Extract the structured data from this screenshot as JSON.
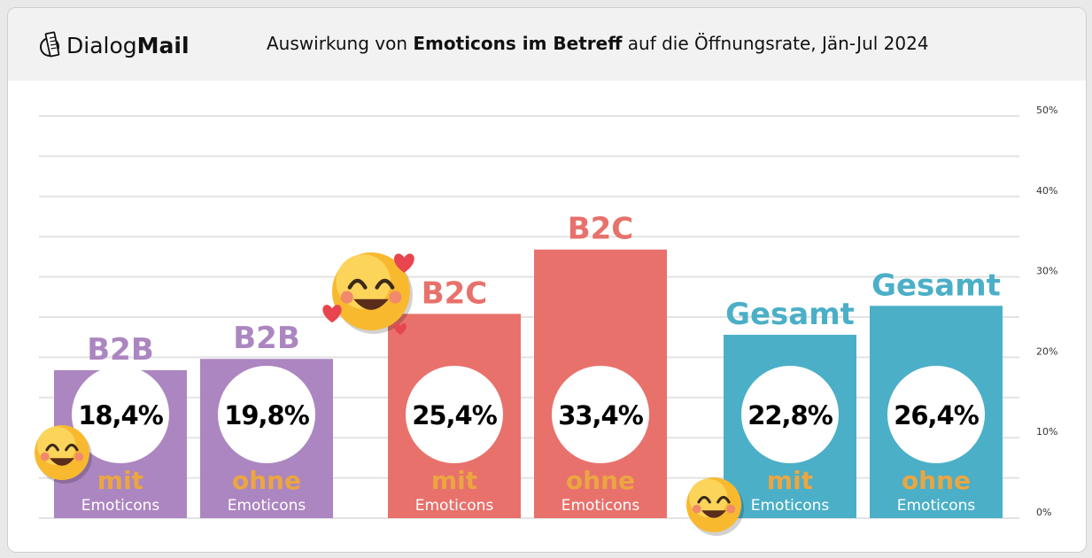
{
  "header": {
    "logo_regular": "Dialog",
    "logo_bold": "Mail",
    "title_pre": "Auswirkung von ",
    "title_bold": "Emoticons im Betreff",
    "title_post": " auf die Öffnungsrate, Jän-Jul 2024"
  },
  "chart_data": {
    "type": "bar",
    "title": "Auswirkung von Emoticons im Betreff auf die Öffnungsrate, Jän-Jul 2024",
    "ylim": [
      0,
      50
    ],
    "yticks": [
      "0%",
      "10%",
      "20%",
      "30%",
      "40%",
      "50%"
    ],
    "ytick_values": [
      0,
      10,
      20,
      30,
      40,
      50
    ],
    "grid": true,
    "axis_position": "right",
    "bars": [
      {
        "group": "B2B",
        "type": "mit",
        "sub": "Emoticons",
        "value": 18.4,
        "label": "18,4%",
        "color": "#ac86c0",
        "emoji": true
      },
      {
        "group": "B2B",
        "type": "ohne",
        "sub": "Emoticons",
        "value": 19.8,
        "label": "19,8%",
        "color": "#ac86c0",
        "emoji": false
      },
      {
        "group": "B2C",
        "type": "mit",
        "sub": "Emoticons",
        "value": 25.4,
        "label": "25,4%",
        "color": "#e8716c",
        "emoji": true
      },
      {
        "group": "B2C",
        "type": "ohne",
        "sub": "Emoticons",
        "value": 33.4,
        "label": "33,4%",
        "color": "#e8716c",
        "emoji": false
      },
      {
        "group": "Gesamt",
        "type": "mit",
        "sub": "Emoticons",
        "value": 22.8,
        "label": "22,8%",
        "color": "#4bafc7",
        "emoji": true
      },
      {
        "group": "Gesamt",
        "type": "ohne",
        "sub": "Emoticons",
        "value": 26.4,
        "label": "26,4%",
        "color": "#4bafc7",
        "emoji": false
      }
    ],
    "label_accent_color": "#eba640"
  }
}
